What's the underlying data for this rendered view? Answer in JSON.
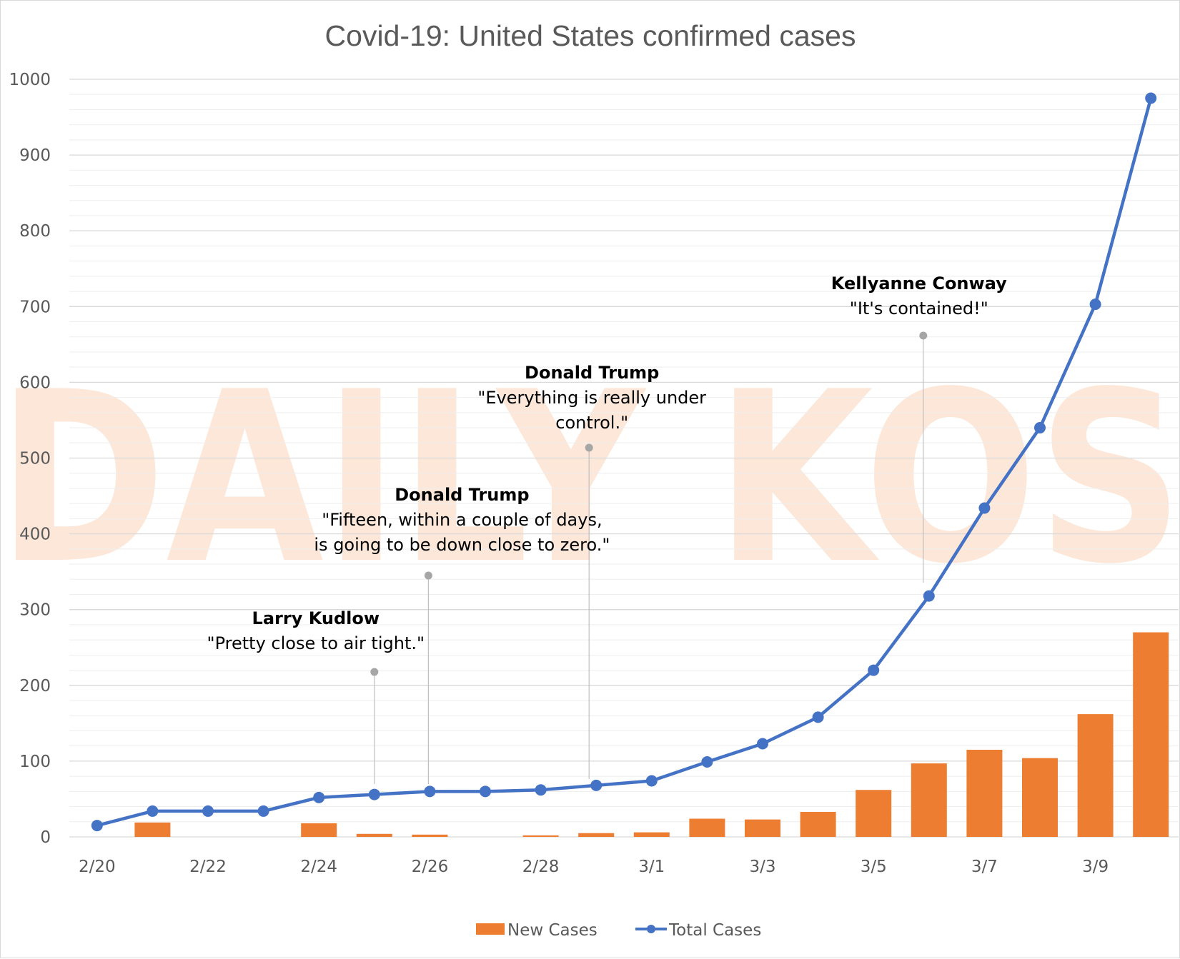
{
  "chart_data": {
    "type": "bar+line",
    "title": "Covid-19: United States confirmed cases",
    "x": [
      "2/20",
      "2/21",
      "2/22",
      "2/23",
      "2/24",
      "2/25",
      "2/26",
      "2/27",
      "2/28",
      "2/29",
      "3/1",
      "3/2",
      "3/3",
      "3/4",
      "3/5",
      "3/6",
      "3/7",
      "3/8",
      "3/9",
      "3/10"
    ],
    "x_tick_labels": [
      "2/20",
      "2/22",
      "2/24",
      "2/26",
      "2/28",
      "3/1",
      "3/3",
      "3/5",
      "3/7",
      "3/9"
    ],
    "y_ticks": [
      "0",
      "100",
      "200",
      "300",
      "400",
      "500",
      "600",
      "700",
      "800",
      "900",
      "1000"
    ],
    "ylim": [
      0,
      1000
    ],
    "grid": true,
    "series": [
      {
        "name": "New Cases",
        "type": "bar",
        "color": "#ed7d31",
        "values": [
          0,
          19,
          0,
          0,
          18,
          4,
          3,
          0,
          2,
          5,
          6,
          24,
          23,
          33,
          62,
          97,
          115,
          104,
          162,
          270
        ]
      },
      {
        "name": "Total Cases",
        "type": "line",
        "color": "#4472c4",
        "values": [
          15,
          34,
          34,
          34,
          52,
          56,
          60,
          60,
          62,
          68,
          74,
          99,
          123,
          158,
          220,
          318,
          434,
          540,
          703,
          975
        ]
      }
    ],
    "legend": "bottom",
    "watermark": "DAILY KOS",
    "annotations": [
      {
        "name": "Larry Kudlow",
        "quote": [
          "\"Pretty close to air tight.\""
        ],
        "x": "2/25"
      },
      {
        "name": "Donald Trump",
        "quote": [
          "\"Fifteen, within a couple of days,",
          "is going to be down close to zero.\""
        ],
        "x": "2/26"
      },
      {
        "name": "Donald Trump",
        "quote": [
          "\"Everything is really under",
          "control.\""
        ],
        "x": "2/29"
      },
      {
        "name": "Kellyanne Conway",
        "quote": [
          "\"It's contained!\""
        ],
        "x": "3/6"
      }
    ]
  }
}
